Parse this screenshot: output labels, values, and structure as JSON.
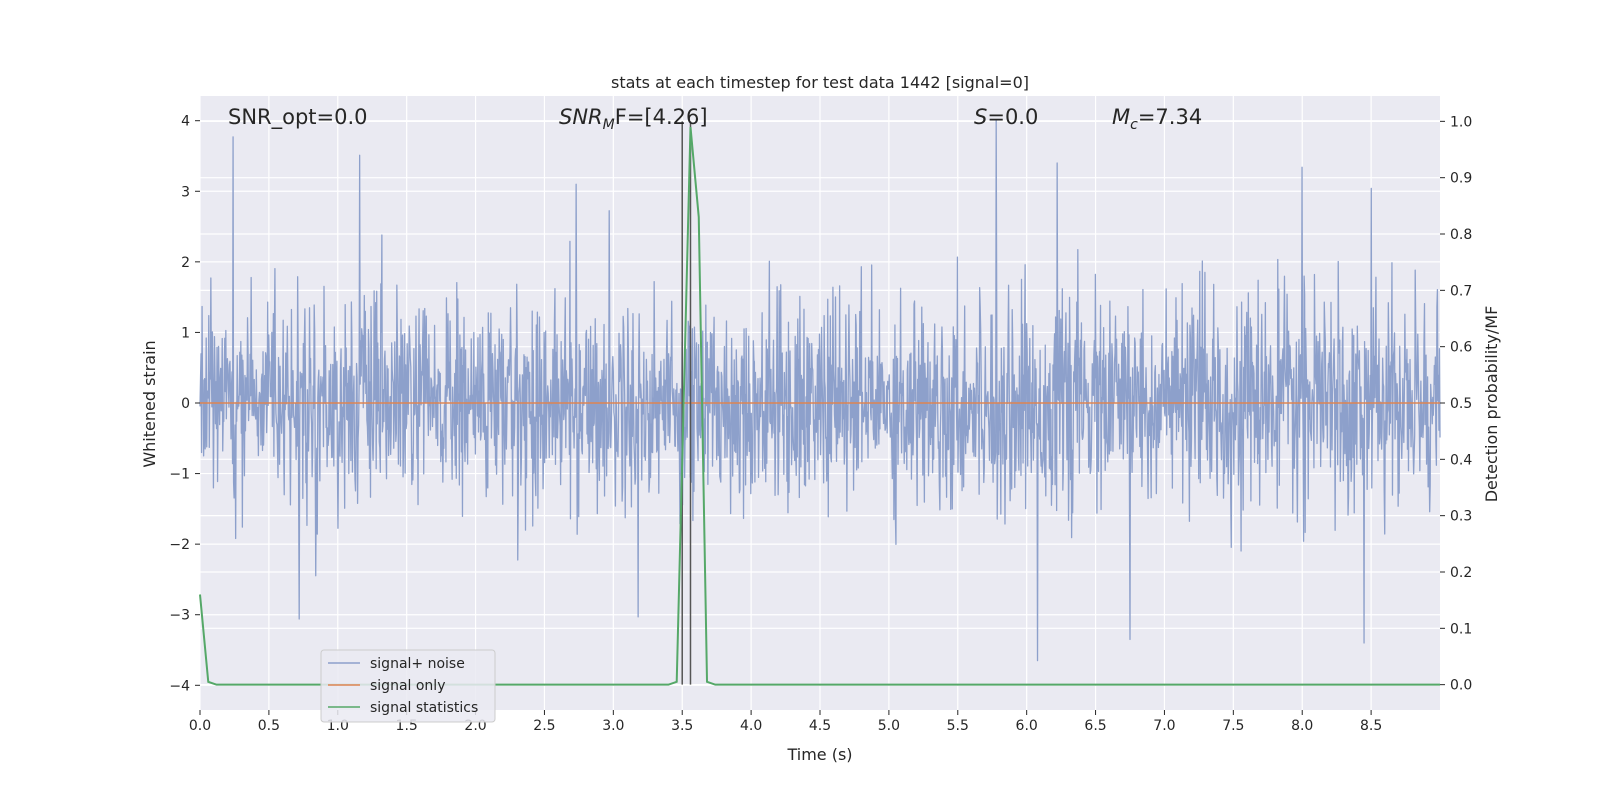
{
  "chart_data": {
    "type": "line",
    "title": "stats at each timestep for test data 1442 [signal=0]",
    "xlabel": "Time (s)",
    "ylabel_left": "Whitened strain",
    "ylabel_right": "Detection probability/MF",
    "xlim": [
      0.0,
      9.0
    ],
    "ylim_left": [
      -4.35,
      4.35
    ],
    "ylim_right": [
      -0.045,
      1.045
    ],
    "x_ticks": [
      "0.0",
      "0.5",
      "1.0",
      "1.5",
      "2.0",
      "2.5",
      "3.0",
      "3.5",
      "4.0",
      "4.5",
      "5.0",
      "5.5",
      "6.0",
      "6.5",
      "7.0",
      "7.5",
      "8.0",
      "8.5"
    ],
    "y_left_ticks": [
      "−4",
      "−3",
      "−2",
      "−1",
      "0",
      "1",
      "2",
      "3",
      "4"
    ],
    "y_right_ticks": [
      "0.0",
      "0.1",
      "0.2",
      "0.3",
      "0.4",
      "0.5",
      "0.6",
      "0.7",
      "0.8",
      "0.9",
      "1.0"
    ],
    "grid": true,
    "legend_position": "lower-left",
    "colors": {
      "noise": "#8da0cb",
      "signal": "#dd8452",
      "stat": "#55a868",
      "vline": "#555555",
      "plot_bg": "#eaeaf2",
      "grid": "#ffffff"
    },
    "annotations": {
      "snr_opt": "SNR_opt=0.0",
      "snr_mf_main": "SNR",
      "snr_mf_sub": "M",
      "snr_mf_rest": "F=[4.26]",
      "s_italic": "S",
      "s_rest": "=0.0",
      "mc_main": "M",
      "mc_sub": "c",
      "mc_rest": "=7.34"
    },
    "vertical_lines_x": [
      3.5,
      3.56
    ],
    "series": [
      {
        "name": "signal+ noise",
        "axis": "left",
        "description_values": "whitened strain noise, roughly gaussian; envelope +-1.5 with peaks",
        "peaks": [
          {
            "x": 0.24,
            "y": 3.77
          },
          {
            "x": 1.16,
            "y": 3.51
          },
          {
            "x": 2.73,
            "y": 3.1
          },
          {
            "x": 5.78,
            "y": 4.0
          },
          {
            "x": 6.22,
            "y": 3.4
          },
          {
            "x": 8.0,
            "y": 3.34
          },
          {
            "x": 8.5,
            "y": 3.04
          },
          {
            "x": 6.08,
            "y": -3.65
          },
          {
            "x": 0.72,
            "y": -3.06
          },
          {
            "x": 8.45,
            "y": -3.4
          },
          {
            "x": 6.75,
            "y": -3.35
          },
          {
            "x": 3.18,
            "y": -3.03
          }
        ]
      },
      {
        "name": "signal only",
        "axis": "left",
        "x": [
          0.0,
          9.0
        ],
        "y": [
          0.0,
          0.0
        ]
      },
      {
        "name": "signal statistics",
        "axis": "right",
        "x": [
          0.0,
          0.06,
          0.12,
          3.4,
          3.46,
          3.56,
          3.62,
          3.68,
          3.74,
          9.0
        ],
        "y": [
          0.16,
          0.005,
          0.0,
          0.0,
          0.005,
          0.99,
          0.83,
          0.005,
          0.0,
          0.0
        ]
      }
    ]
  }
}
